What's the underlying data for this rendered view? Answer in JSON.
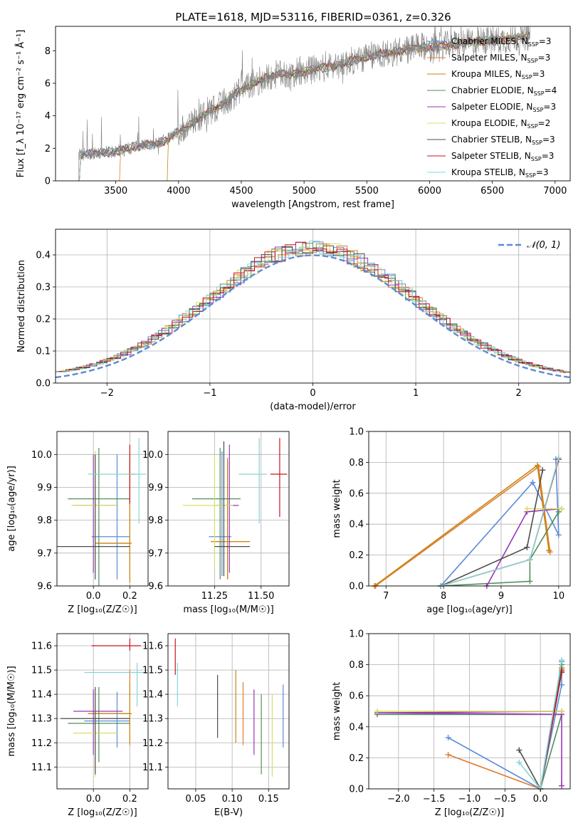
{
  "figure": {
    "title": "PLATE=1618, MJD=53116, FIBERID=0361, z=0.326",
    "models": [
      {
        "name": "Chabrier MILES",
        "nssp": "3",
        "color": "#5b8bd9"
      },
      {
        "name": "Salpeter MILES",
        "nssp": "3",
        "color": "#e07b2f"
      },
      {
        "name": "Kroupa MILES",
        "nssp": "3",
        "color": "#c8860f"
      },
      {
        "name": "Chabrier ELODIE",
        "nssp": "4",
        "color": "#4f8f5a"
      },
      {
        "name": "Salpeter ELODIE",
        "nssp": "3",
        "color": "#9a36b5"
      },
      {
        "name": "Kroupa ELODIE",
        "nssp": "2",
        "color": "#d9e060"
      },
      {
        "name": "Chabrier STELIB",
        "nssp": "3",
        "color": "#4d4d4d"
      },
      {
        "name": "Salpeter STELIB",
        "nssp": "3",
        "color": "#c8141e"
      },
      {
        "name": "Kroupa STELIB",
        "nssp": "3",
        "color": "#86d4d4"
      }
    ]
  },
  "chart_data": [
    {
      "id": "spectrum",
      "type": "line",
      "xlabel": "wavelength [Angstrom, rest frame]",
      "ylabel": "Flux [f_λ 10⁻¹⁷ erg cm⁻² s⁻¹ Å⁻¹]",
      "xlim": [
        3020,
        7120
      ],
      "ylim": [
        0,
        9.5
      ],
      "xticks": [
        3500,
        4000,
        4500,
        5000,
        5500,
        6000,
        6500,
        7000
      ],
      "yticks": [
        0,
        2,
        4,
        6,
        8
      ],
      "legend_position": "right",
      "data_color": "#808080",
      "data_start": 3200,
      "data_end": 6800,
      "continuum": [
        [
          3200,
          1.6
        ],
        [
          3400,
          1.75
        ],
        [
          3500,
          1.8
        ],
        [
          3600,
          2.0
        ],
        [
          3700,
          2.15
        ],
        [
          3800,
          2.2
        ],
        [
          3900,
          2.5
        ],
        [
          4000,
          3.0
        ],
        [
          4100,
          3.5
        ],
        [
          4200,
          4.0
        ],
        [
          4300,
          4.5
        ],
        [
          4400,
          5.0
        ],
        [
          4500,
          5.6
        ],
        [
          4600,
          6.0
        ],
        [
          4700,
          6.3
        ],
        [
          4800,
          6.6
        ],
        [
          4900,
          6.5
        ],
        [
          5000,
          6.7
        ],
        [
          5100,
          6.9
        ],
        [
          5200,
          7.0
        ],
        [
          5300,
          7.2
        ],
        [
          5400,
          7.4
        ],
        [
          5500,
          7.6
        ],
        [
          5600,
          7.8
        ],
        [
          5700,
          7.9
        ],
        [
          5800,
          8.0
        ],
        [
          5900,
          8.2
        ],
        [
          6000,
          8.2
        ],
        [
          6100,
          8.3
        ],
        [
          6200,
          8.4
        ],
        [
          6300,
          8.5
        ],
        [
          6400,
          8.6
        ],
        [
          6500,
          8.6
        ],
        [
          6600,
          8.7
        ],
        [
          6700,
          8.8
        ],
        [
          6800,
          8.9
        ]
      ]
    },
    {
      "id": "residuals",
      "type": "histogram",
      "xlabel": "(data-model)/error",
      "ylabel": "Normed distribution",
      "xlim": [
        -2.5,
        2.5
      ],
      "ylim": [
        0,
        0.48
      ],
      "xticks": [
        -2,
        -1,
        0,
        1,
        2
      ],
      "yticks": [
        0.0,
        0.1,
        0.2,
        0.3,
        0.4
      ],
      "grid": true,
      "bin_width": 0.1,
      "reference": {
        "label": "𝒩(0, 1)",
        "color": "#5b8bd9",
        "mean": 0,
        "sigma": 1
      },
      "legend_position": "top-right"
    },
    {
      "id": "age_vs_Z",
      "type": "errorbar",
      "xlabel": "Z [log₁₀(Z/Z☉)]",
      "ylabel": "age  [log₁₀(age/yr)]",
      "xlim": [
        -0.2,
        0.3
      ],
      "ylim": [
        9.6,
        10.07
      ],
      "xticks": [
        0.0,
        0.2
      ],
      "yticks": [
        9.6,
        9.7,
        9.8,
        9.9,
        10.0
      ],
      "grid": true,
      "points": [
        {
          "model": 0,
          "x": 0.13,
          "y": 9.75,
          "xlo": -0.01,
          "xhi": 0.2,
          "ylo": 9.62,
          "yhi": 10.0
        },
        {
          "model": 1,
          "x": 0.2,
          "y": 9.73,
          "xlo": 0.02,
          "xhi": 0.21,
          "ylo": 9.62,
          "yhi": 10.0
        },
        {
          "model": 2,
          "x": 0.2,
          "y": 9.73,
          "xlo": 0.01,
          "xhi": 0.21,
          "ylo": 9.61,
          "yhi": 9.98
        },
        {
          "model": 3,
          "x": 0.03,
          "y": 9.865,
          "xlo": -0.14,
          "xhi": 0.2,
          "ylo": 9.6,
          "yhi": 10.02
        },
        {
          "model": 4,
          "x": 0.0,
          "y": 9.845,
          "xlo": -0.11,
          "xhi": 0.13,
          "ylo": 9.64,
          "yhi": 10.0
        },
        {
          "model": 5,
          "x": 0.01,
          "y": 9.845,
          "xlo": -0.12,
          "xhi": 0.14,
          "ylo": 9.66,
          "yhi": 10.01
        },
        {
          "model": 6,
          "x": 0.01,
          "y": 9.72,
          "xlo": -0.21,
          "xhi": 0.2,
          "ylo": 9.62,
          "yhi": 10.0
        },
        {
          "model": 7,
          "x": 0.2,
          "y": 9.94,
          "xlo": 0.19,
          "xhi": 0.23,
          "ylo": 9.85,
          "yhi": 10.03
        },
        {
          "model": 8,
          "x": 0.25,
          "y": 9.94,
          "xlo": -0.03,
          "xhi": 0.29,
          "ylo": 9.79,
          "yhi": 10.05
        }
      ]
    },
    {
      "id": "age_vs_mass",
      "type": "errorbar",
      "xlabel": "mass [log₁₀(M/M☉)]",
      "ylabel": "",
      "xlim": [
        11.0,
        11.65
      ],
      "ylim": [
        9.6,
        10.07
      ],
      "xticks": [
        11.25,
        11.5
      ],
      "yticks": [
        9.6,
        9.7,
        9.8,
        9.9,
        10.0
      ],
      "grid": true,
      "points": [
        {
          "model": 0,
          "x": 11.29,
          "y": 9.75,
          "xlo": 11.22,
          "xhi": 11.34,
          "ylo": 9.63,
          "yhi": 10.01
        },
        {
          "model": 1,
          "x": 11.32,
          "y": 9.735,
          "xlo": 11.23,
          "xhi": 11.44,
          "ylo": 9.62,
          "yhi": 9.99
        },
        {
          "model": 2,
          "x": 11.32,
          "y": 9.735,
          "xlo": 11.23,
          "xhi": 11.44,
          "ylo": 9.62,
          "yhi": 9.98
        },
        {
          "model": 3,
          "x": 11.28,
          "y": 9.865,
          "xlo": 11.13,
          "xhi": 11.39,
          "ylo": 9.62,
          "yhi": 10.02
        },
        {
          "model": 4,
          "x": 11.33,
          "y": 9.845,
          "xlo": 11.25,
          "xhi": 11.38,
          "ylo": 9.64,
          "yhi": 10.03
        },
        {
          "model": 5,
          "x": 11.25,
          "y": 9.845,
          "xlo": 11.08,
          "xhi": 11.35,
          "ylo": 9.66,
          "yhi": 10.0
        },
        {
          "model": 6,
          "x": 11.3,
          "y": 9.72,
          "xlo": 11.25,
          "xhi": 11.44,
          "ylo": 9.63,
          "yhi": 10.04
        },
        {
          "model": 7,
          "x": 11.6,
          "y": 9.94,
          "xlo": 11.55,
          "xhi": 11.64,
          "ylo": 9.81,
          "yhi": 10.05
        },
        {
          "model": 8,
          "x": 11.49,
          "y": 9.94,
          "xlo": 11.38,
          "xhi": 11.53,
          "ylo": 9.79,
          "yhi": 10.05
        }
      ]
    },
    {
      "id": "weight_vs_age",
      "type": "line",
      "xlabel": "age  [log₁₀(age/yr)]",
      "ylabel": "mass weight",
      "xlim": [
        6.7,
        10.2
      ],
      "ylim": [
        0,
        1
      ],
      "xticks": [
        7,
        8,
        9,
        10
      ],
      "yticks": [
        0.0,
        0.2,
        0.4,
        0.6,
        0.8,
        1.0
      ],
      "grid": true,
      "series": [
        {
          "model": 0,
          "x": [
            7.95,
            9.55,
            10.0,
            9.95
          ],
          "y": [
            0.0,
            0.67,
            0.33,
            0.82
          ]
        },
        {
          "model": 1,
          "x": [
            6.82,
            9.65,
            9.85
          ],
          "y": [
            0.0,
            0.77,
            0.22
          ]
        },
        {
          "model": 2,
          "x": [
            6.8,
            9.63,
            9.83
          ],
          "y": [
            0.0,
            0.78,
            0.23
          ]
        },
        {
          "model": 3,
          "x": [
            7.95,
            9.5,
            9.5,
            10.0
          ],
          "y": [
            0.0,
            0.03,
            0.17,
            0.48
          ]
        },
        {
          "model": 4,
          "x": [
            8.75,
            9.45,
            10.05
          ],
          "y": [
            0.0,
            0.48,
            0.5
          ]
        },
        {
          "model": 5,
          "x": [
            9.45,
            10.05
          ],
          "y": [
            0.5,
            0.5
          ]
        },
        {
          "model": 6,
          "x": [
            7.95,
            9.45,
            9.72
          ],
          "y": [
            0.0,
            0.25,
            0.75
          ]
        },
        {
          "model": 7,
          "x": [
            7.95,
            9.5,
            10.0
          ],
          "y": [
            0.0,
            0.17,
            0.82
          ]
        },
        {
          "model": 8,
          "x": [
            7.95,
            9.5,
            10.0
          ],
          "y": [
            0.0,
            0.17,
            0.83
          ]
        }
      ]
    },
    {
      "id": "mass_vs_Z",
      "type": "errorbar",
      "xlabel": "Z [log₁₀(Z/Z☉)]",
      "ylabel": "mass [log₁₀(M/M☉)]",
      "xlim": [
        -0.2,
        0.3
      ],
      "ylim": [
        11.01,
        11.65
      ],
      "xticks": [
        0.0,
        0.2
      ],
      "yticks": [
        11.1,
        11.2,
        11.3,
        11.4,
        11.5,
        11.6
      ],
      "grid": true,
      "points": [
        {
          "model": 0,
          "x": 0.13,
          "y": 11.29,
          "xlo": -0.05,
          "xhi": 0.2,
          "ylo": 11.18,
          "yhi": 11.41
        },
        {
          "model": 1,
          "x": 0.2,
          "y": 11.32,
          "xlo": -0.02,
          "xhi": 0.21,
          "ylo": 11.19,
          "yhi": 11.5
        },
        {
          "model": 2,
          "x": 0.2,
          "y": 11.32,
          "xlo": -0.03,
          "xhi": 0.21,
          "ylo": 11.2,
          "yhi": 11.45
        },
        {
          "model": 3,
          "x": 0.03,
          "y": 11.28,
          "xlo": -0.14,
          "xhi": 0.2,
          "ylo": 11.12,
          "yhi": 11.43
        },
        {
          "model": 4,
          "x": 0.0,
          "y": 11.33,
          "xlo": -0.11,
          "xhi": 0.16,
          "ylo": 11.15,
          "yhi": 11.42
        },
        {
          "model": 5,
          "x": 0.01,
          "y": 11.24,
          "xlo": -0.11,
          "xhi": 0.13,
          "ylo": 11.06,
          "yhi": 11.39
        },
        {
          "model": 6,
          "x": 0.01,
          "y": 11.3,
          "xlo": -0.18,
          "xhi": 0.2,
          "ylo": 11.07,
          "yhi": 11.43
        },
        {
          "model": 7,
          "x": 0.2,
          "y": 11.6,
          "xlo": -0.01,
          "xhi": 0.26,
          "ylo": 11.58,
          "yhi": 11.63
        },
        {
          "model": 8,
          "x": 0.24,
          "y": 11.49,
          "xlo": -0.05,
          "xhi": 0.29,
          "ylo": 11.35,
          "yhi": 11.53
        }
      ]
    },
    {
      "id": "mass_vs_ebv",
      "type": "errorbar",
      "xlabel": "E(B-V)",
      "ylabel": "",
      "xlim": [
        0.012,
        0.178
      ],
      "ylim": [
        11.01,
        11.65
      ],
      "xticks": [
        0.05,
        0.1,
        0.15
      ],
      "yticks": [
        11.1,
        11.2,
        11.3,
        11.4,
        11.5,
        11.6
      ],
      "grid": true,
      "points": [
        {
          "model": 0,
          "x": 0.17,
          "y": 11.29,
          "xlo": 0.17,
          "xhi": 0.17,
          "ylo": 11.18,
          "yhi": 11.44
        },
        {
          "model": 1,
          "x": 0.115,
          "y": 11.32,
          "xlo": 0.115,
          "xhi": 0.115,
          "ylo": 11.19,
          "yhi": 11.45
        },
        {
          "model": 2,
          "x": 0.105,
          "y": 11.32,
          "xlo": 0.105,
          "xhi": 0.105,
          "ylo": 11.2,
          "yhi": 11.5
        },
        {
          "model": 3,
          "x": 0.14,
          "y": 11.28,
          "xlo": 0.14,
          "xhi": 0.14,
          "ylo": 11.07,
          "yhi": 11.4
        },
        {
          "model": 4,
          "x": 0.13,
          "y": 11.33,
          "xlo": 0.13,
          "xhi": 0.13,
          "ylo": 11.15,
          "yhi": 11.42
        },
        {
          "model": 5,
          "x": 0.155,
          "y": 11.24,
          "xlo": 0.155,
          "xhi": 0.155,
          "ylo": 11.06,
          "yhi": 11.4
        },
        {
          "model": 6,
          "x": 0.08,
          "y": 11.3,
          "xlo": 0.08,
          "xhi": 0.08,
          "ylo": 11.22,
          "yhi": 11.48
        },
        {
          "model": 7,
          "x": 0.022,
          "y": 11.55,
          "xlo": 0.022,
          "xhi": 0.022,
          "ylo": 11.48,
          "yhi": 11.63
        },
        {
          "model": 8,
          "x": 0.025,
          "y": 11.45,
          "xlo": 0.025,
          "xhi": 0.025,
          "ylo": 11.35,
          "yhi": 11.53
        }
      ]
    },
    {
      "id": "weight_vs_Z",
      "type": "line",
      "xlabel": "Z [log₁₀(Z/Z☉)]",
      "ylabel": "mass weight",
      "xlim": [
        -2.42,
        0.42
      ],
      "ylim": [
        0,
        1
      ],
      "xticks": [
        -2.0,
        -1.5,
        -1.0,
        -0.5,
        0.0
      ],
      "yticks": [
        0.0,
        0.2,
        0.4,
        0.6,
        0.8,
        1.0
      ],
      "grid": true,
      "series": [
        {
          "model": 0,
          "x": [
            -1.3,
            0.0,
            0.3,
            0.3
          ],
          "y": [
            0.33,
            0.0,
            0.67,
            0.82
          ]
        },
        {
          "model": 1,
          "x": [
            -1.3,
            0.0,
            0.3
          ],
          "y": [
            0.22,
            0.0,
            0.77
          ]
        },
        {
          "model": 2,
          "x": [
            0.0,
            0.3
          ],
          "y": [
            0.0,
            0.78
          ]
        },
        {
          "model": 3,
          "x": [
            -2.3,
            0.3,
            0.0,
            0.3
          ],
          "y": [
            0.48,
            0.48,
            0.0,
            0.8
          ]
        },
        {
          "model": 4,
          "x": [
            0.3,
            0.3,
            -2.3,
            0.3
          ],
          "y": [
            0.02,
            0.48,
            0.49,
            0.5
          ]
        },
        {
          "model": 5,
          "x": [
            -2.3,
            0.3
          ],
          "y": [
            0.5,
            0.5
          ]
        },
        {
          "model": 6,
          "x": [
            -0.3,
            0.0,
            0.3
          ],
          "y": [
            0.25,
            0.0,
            0.75
          ]
        },
        {
          "model": 7,
          "x": [
            0.0,
            0.3
          ],
          "y": [
            0.0,
            0.76
          ]
        },
        {
          "model": 8,
          "x": [
            -0.3,
            0.0,
            0.3
          ],
          "y": [
            0.17,
            0.0,
            0.83
          ]
        }
      ]
    }
  ]
}
